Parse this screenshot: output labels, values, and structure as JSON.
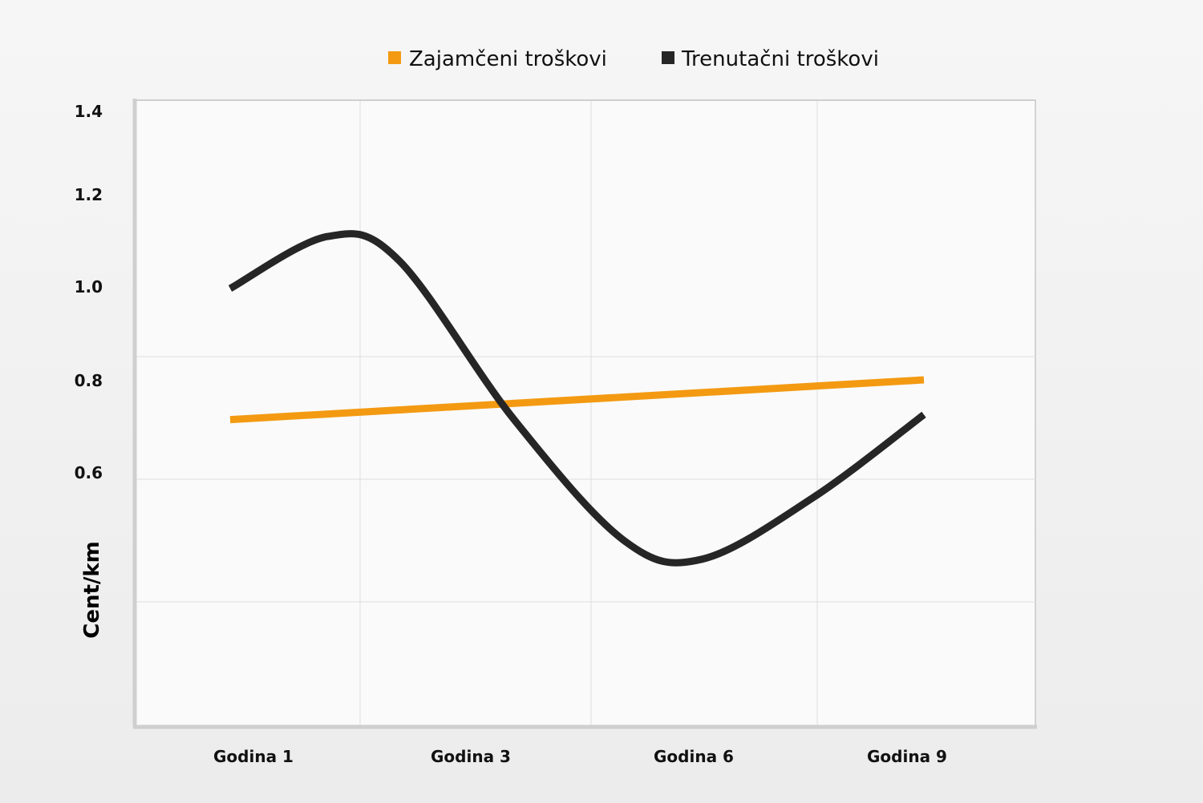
{
  "chart_data": {
    "type": "line",
    "categories": [
      "Godina 1",
      "Godina 3",
      "Godina 6",
      "Godina 9"
    ],
    "ylabel": "Cent/km",
    "xlabel": "",
    "y_ticks": [
      "1.4",
      "1.2",
      "1.0",
      "0.8",
      "0.6"
    ],
    "ylim": [
      0.2,
      1.4
    ],
    "legend_position": "top",
    "grid": true,
    "series": [
      {
        "name": "Zajamčeni troškovi",
        "color": "#f39a12",
        "x": [
          1,
          9
        ],
        "values": [
          0.72,
          0.8
        ]
      },
      {
        "name": "Trenutačni troškovi",
        "color": "#262626",
        "x": [
          1,
          2.5,
          3.5,
          5,
          6.3,
          7,
          8,
          9
        ],
        "values": [
          1.0,
          1.11,
          1.06,
          0.72,
          0.5,
          0.47,
          0.57,
          0.73
        ]
      }
    ]
  }
}
